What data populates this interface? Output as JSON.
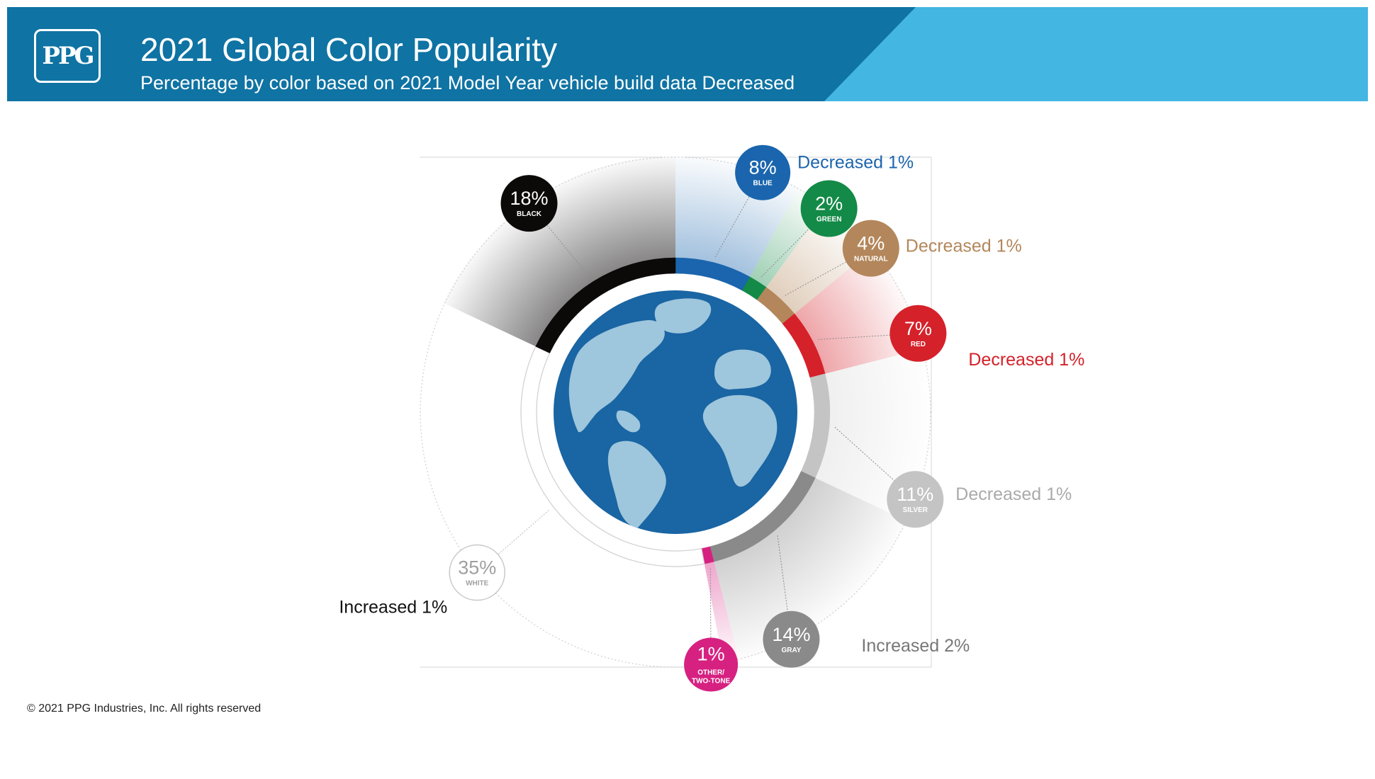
{
  "header": {
    "logo_text": "PPG",
    "title": "2021 Global Color Popularity",
    "subtitle": "Percentage by color based on 2021 Model Year vehicle build data Decreased"
  },
  "chart_data": {
    "type": "pie",
    "variant": "donut",
    "title": "2021 Global Color Popularity",
    "subtitle": "Percentage by color based on 2021 Model Year vehicle build data Decreased",
    "slices": [
      {
        "key": "blue",
        "label": "BLUE",
        "value": 8,
        "value_label": "8%",
        "color": "#1a65ad",
        "change": "Decreased 1%",
        "change_color": "#1d65ad"
      },
      {
        "key": "green",
        "label": "GREEN",
        "value": 2,
        "value_label": "2%",
        "color": "#138a47",
        "change": "",
        "change_color": ""
      },
      {
        "key": "natural",
        "label": "NATURAL",
        "value": 4,
        "value_label": "4%",
        "color": "#b3875b",
        "change": "Decreased 1%",
        "change_color": "#b3875b"
      },
      {
        "key": "red",
        "label": "RED",
        "value": 7,
        "value_label": "7%",
        "color": "#d5212a",
        "change": "Decreased 1%",
        "change_color": "#d5212a"
      },
      {
        "key": "silver",
        "label": "SILVER",
        "value": 11,
        "value_label": "11%",
        "color": "#c4c4c4",
        "change": "Decreased 1%",
        "change_color": "#aaaaaa"
      },
      {
        "key": "gray",
        "label": "GRAY",
        "value": 14,
        "value_label": "14%",
        "color": "#8a8a8a",
        "change": "Increased 2%",
        "change_color": "#777777"
      },
      {
        "key": "other",
        "label": "OTHER/ TWO-TONE",
        "label_lines": [
          "OTHER/",
          "TWO-TONE"
        ],
        "value": 1,
        "value_label": "1%",
        "color": "#d62181",
        "change": "",
        "change_color": ""
      },
      {
        "key": "white",
        "label": "WHITE",
        "value": 35,
        "value_label": "35%",
        "color": "#ffffff",
        "change": "Increased 1%",
        "change_color": "#111111"
      },
      {
        "key": "black",
        "label": "BLACK",
        "value": 18,
        "value_label": "18%",
        "color": "#0c0909",
        "change": "",
        "change_color": ""
      }
    ],
    "colors": {
      "globe_ocean": "#1a65a3",
      "globe_land": "#9ec6dc"
    }
  },
  "footer": {
    "copyright": "© 2021 PPG Industries, Inc. All rights reserved"
  }
}
